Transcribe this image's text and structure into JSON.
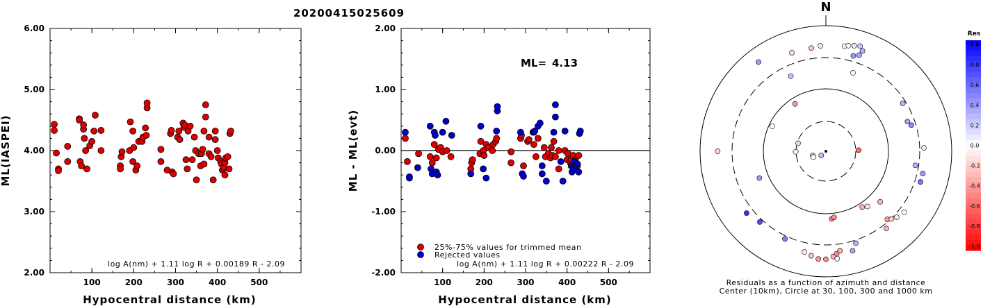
{
  "figure_title": "20200415025609",
  "chart_data": [
    {
      "type": "scatter",
      "xlabel": "Hypocentral distance (km)",
      "ylabel": "ML(IASPEI)",
      "xlim": [
        0,
        600
      ],
      "ylim": [
        2.0,
        6.0
      ],
      "xticks": [
        "100",
        "200",
        "300",
        "400",
        "500"
      ],
      "yticks": [
        "2.00",
        "3.00",
        "4.00",
        "5.00",
        "6.00"
      ],
      "formula": "log A(nm) + 1.11 log R + 0.00189 R - 2.09",
      "series": [
        {
          "color": "#dd0000",
          "points": [
            [
              10,
              4.43
            ],
            [
              10,
              4.33
            ],
            [
              15,
              3.96
            ],
            [
              20,
              3.7
            ],
            [
              20,
              3.67
            ],
            [
              42,
              4.07
            ],
            [
              42,
              3.82
            ],
            [
              70,
              4.52
            ],
            [
              70,
              4.5
            ],
            [
              72,
              3.82
            ],
            [
              75,
              3.75
            ],
            [
              80,
              4.35
            ],
            [
              80,
              4.42
            ],
            [
              82,
              4.2
            ],
            [
              85,
              4.0
            ],
            [
              88,
              3.7
            ],
            [
              95,
              4.08
            ],
            [
              100,
              4.15
            ],
            [
              105,
              4.32
            ],
            [
              108,
              4.58
            ],
            [
              122,
              4.33
            ],
            [
              122,
              4.0
            ],
            [
              168,
              3.75
            ],
            [
              168,
              3.7
            ],
            [
              170,
              3.9
            ],
            [
              172,
              3.98
            ],
            [
              190,
              4.0
            ],
            [
              192,
              4.47
            ],
            [
              198,
              4.32
            ],
            [
              198,
              3.82
            ],
            [
              200,
              4.05
            ],
            [
              205,
              3.68
            ],
            [
              208,
              3.75
            ],
            [
              212,
              4.15
            ],
            [
              220,
              4.15
            ],
            [
              222,
              4.22
            ],
            [
              228,
              4.37
            ],
            [
              230,
              4.25
            ],
            [
              232,
              4.7
            ],
            [
              232,
              4.78
            ],
            [
              265,
              4.02
            ],
            [
              265,
              3.82
            ],
            [
              280,
              3.68
            ],
            [
              288,
              4.28
            ],
            [
              290,
              4.33
            ],
            [
              292,
              3.65
            ],
            [
              295,
              3.62
            ],
            [
              305,
              4.22
            ],
            [
              308,
              4.32
            ],
            [
              310,
              4.18
            ],
            [
              318,
              4.45
            ],
            [
              320,
              4.38
            ],
            [
              322,
              4.42
            ],
            [
              325,
              3.85
            ],
            [
              328,
              3.7
            ],
            [
              330,
              4.32
            ],
            [
              335,
              4.4
            ],
            [
              340,
              3.85
            ],
            [
              345,
              4.22
            ],
            [
              348,
              4.0
            ],
            [
              350,
              3.52
            ],
            [
              355,
              3.95
            ],
            [
              360,
              3.75
            ],
            [
              362,
              3.95
            ],
            [
              365,
              4.02
            ],
            [
              368,
              4.32
            ],
            [
              368,
              3.78
            ],
            [
              372,
              4.75
            ],
            [
              372,
              4.55
            ],
            [
              380,
              4.22
            ],
            [
              380,
              3.95
            ],
            [
              385,
              3.9
            ],
            [
              390,
              3.52
            ],
            [
              395,
              4.32
            ],
            [
              395,
              4.18
            ],
            [
              400,
              4.0
            ],
            [
              402,
              3.88
            ],
            [
              408,
              3.82
            ],
            [
              410,
              3.78
            ],
            [
              412,
              3.68
            ],
            [
              415,
              3.72
            ],
            [
              418,
              3.6
            ],
            [
              418,
              3.8
            ],
            [
              420,
              3.88
            ],
            [
              425,
              3.9
            ],
            [
              428,
              3.7
            ],
            [
              430,
              4.28
            ],
            [
              432,
              4.32
            ]
          ]
        }
      ]
    },
    {
      "type": "scatter",
      "xlabel": "Hypocentral distance (km)",
      "ylabel": "ML - ML(evt)",
      "xlim": [
        0,
        600
      ],
      "ylim": [
        -2.0,
        2.0
      ],
      "xticks": [
        "100",
        "200",
        "300",
        "400",
        "500"
      ],
      "yticks": [
        "-2.00",
        "-1.00",
        "0.00",
        "1.00",
        "2.00"
      ],
      "hline": 0.0,
      "ml_label": "ML=",
      "ml_value": "4.13",
      "formula": "log A(nm) + 1.11 log R + 0.00222 R - 2.09",
      "series": [
        {
          "name": "25%-75% values for trimmed mean",
          "color": "#dd0000",
          "points": [
            [
              10,
              0.2
            ],
            [
              15,
              -0.18
            ],
            [
              42,
              -0.05
            ],
            [
              70,
              -0.1
            ],
            [
              75,
              -0.2
            ],
            [
              80,
              0.1
            ],
            [
              85,
              -0.12
            ],
            [
              90,
              0.02
            ],
            [
              95,
              0.05
            ],
            [
              100,
              -0.02
            ],
            [
              110,
              0.0
            ],
            [
              120,
              -0.1
            ],
            [
              168,
              -0.3
            ],
            [
              170,
              -0.2
            ],
            [
              172,
              -0.15
            ],
            [
              190,
              -0.05
            ],
            [
              192,
              0.15
            ],
            [
              198,
              0.0
            ],
            [
              200,
              -0.08
            ],
            [
              205,
              0.1
            ],
            [
              210,
              0.05
            ],
            [
              220,
              0.0
            ],
            [
              222,
              0.1
            ],
            [
              228,
              0.15
            ],
            [
              230,
              0.2
            ],
            [
              265,
              -0.02
            ],
            [
              265,
              -0.2
            ],
            [
              288,
              0.2
            ],
            [
              290,
              0.25
            ],
            [
              295,
              -0.25
            ],
            [
              305,
              0.15
            ],
            [
              308,
              0.18
            ],
            [
              318,
              0.3
            ],
            [
              320,
              0.1
            ],
            [
              325,
              -0.1
            ],
            [
              330,
              0.2
            ],
            [
              345,
              0.05
            ],
            [
              348,
              -0.1
            ],
            [
              355,
              -0.05
            ],
            [
              360,
              -0.12
            ],
            [
              362,
              0.05
            ],
            [
              365,
              -0.08
            ],
            [
              368,
              0.15
            ],
            [
              372,
              -0.1
            ],
            [
              380,
              0.0
            ],
            [
              380,
              -0.3
            ],
            [
              395,
              0.0
            ],
            [
              400,
              -0.15
            ],
            [
              402,
              -0.05
            ],
            [
              408,
              -0.2
            ],
            [
              410,
              -0.15
            ],
            [
              415,
              -0.08
            ],
            [
              420,
              -0.15
            ],
            [
              425,
              -0.25
            ],
            [
              428,
              -0.08
            ]
          ]
        },
        {
          "name": "Rejected values",
          "color": "#0000cc",
          "points": [
            [
              10,
              0.3
            ],
            [
              20,
              -0.43
            ],
            [
              20,
              -0.45
            ],
            [
              40,
              -0.28
            ],
            [
              70,
              0.4
            ],
            [
              72,
              -0.3
            ],
            [
              75,
              -0.38
            ],
            [
              80,
              0.3
            ],
            [
              82,
              0.25
            ],
            [
              85,
              -0.35
            ],
            [
              88,
              -0.4
            ],
            [
              100,
              0.3
            ],
            [
              108,
              0.48
            ],
            [
              122,
              0.25
            ],
            [
              168,
              -0.38
            ],
            [
              192,
              0.4
            ],
            [
              198,
              -0.3
            ],
            [
              205,
              -0.45
            ],
            [
              230,
              0.32
            ],
            [
              232,
              0.65
            ],
            [
              232,
              0.72
            ],
            [
              288,
              0.3
            ],
            [
              292,
              -0.38
            ],
            [
              295,
              -0.42
            ],
            [
              320,
              0.3
            ],
            [
              322,
              0.32
            ],
            [
              330,
              0.4
            ],
            [
              335,
              0.45
            ],
            [
              340,
              -0.25
            ],
            [
              340,
              -0.38
            ],
            [
              350,
              -0.5
            ],
            [
              368,
              0.3
            ],
            [
              372,
              0.75
            ],
            [
              372,
              0.55
            ],
            [
              385,
              -0.18
            ],
            [
              390,
              -0.5
            ],
            [
              395,
              0.32
            ],
            [
              410,
              -0.25
            ],
            [
              412,
              -0.35
            ],
            [
              415,
              -0.28
            ],
            [
              418,
              -0.3
            ],
            [
              418,
              -0.18
            ],
            [
              420,
              -0.25
            ],
            [
              425,
              -0.22
            ],
            [
              428,
              -0.35
            ],
            [
              430,
              0.28
            ],
            [
              432,
              0.32
            ]
          ]
        }
      ]
    },
    {
      "type": "polar_scatter",
      "north_label": "N",
      "caption_line1": "Residuals as a function of azimuth and distance",
      "caption_line2": "Center (10km), Circle at 30, 100, 300 and 1000 km",
      "colorbar_title": "Res",
      "colorbar_ticks": [
        "1.0",
        "0.8",
        "0.6",
        "0.4",
        "0.2",
        "0.0",
        "-0.2",
        "-0.4",
        "-0.6",
        "-0.8",
        "-1.0"
      ],
      "points": [
        [
          10,
          0.85,
          -0.05
        ],
        [
          12,
          0.86,
          0.0
        ],
        [
          15,
          0.87,
          0.1
        ],
        [
          18,
          0.88,
          0.2
        ],
        [
          20,
          0.85,
          0.3
        ],
        [
          16,
          0.79,
          0.4
        ],
        [
          19,
          0.81,
          0.35
        ],
        [
          357,
          0.84,
          -0.1
        ],
        [
          352,
          0.83,
          -0.25
        ],
        [
          341,
          0.83,
          -0.15
        ],
        [
          323,
          0.89,
          0.4
        ],
        [
          335,
          0.66,
          0.25
        ],
        [
          19,
          0.66,
          0.0
        ],
        [
          327,
          0.45,
          -0.4
        ],
        [
          58,
          0.72,
          0.3
        ],
        [
          70,
          0.69,
          0.35
        ],
        [
          73,
          0.71,
          0.45
        ],
        [
          286,
          0.23,
          0.15
        ],
        [
          295,
          0.47,
          0.0
        ],
        [
          88,
          0.78,
          -0.1
        ],
        [
          99,
          0.72,
          0.3
        ],
        [
          103,
          0.79,
          0.4
        ],
        [
          108,
          0.79,
          0.55
        ],
        [
          133,
          0.59,
          -0.3
        ],
        [
          143,
          0.55,
          -0.1
        ],
        [
          147,
          0.53,
          -0.3
        ],
        [
          133,
          0.77,
          -0.1
        ],
        [
          128,
          0.79,
          0.0
        ],
        [
          138,
          0.73,
          -0.4
        ],
        [
          142,
          0.78,
          -0.3
        ],
        [
          136,
          0.75,
          -0.2
        ],
        [
          270,
          0.86,
          -0.2
        ],
        [
          248,
          0.57,
          0.4
        ],
        [
          232,
          0.8,
          0.8
        ],
        [
          223,
          0.77,
          0.7
        ],
        [
          205,
          0.77,
          0.5
        ],
        [
          188,
          0.84,
          -0.25
        ],
        [
          192,
          0.82,
          -0.1
        ],
        [
          184,
          0.86,
          -0.4
        ],
        [
          180,
          0.86,
          -0.45
        ],
        [
          176,
          0.84,
          -0.3
        ],
        [
          174,
          0.86,
          0.0
        ],
        [
          165,
          0.82,
          0.35
        ],
        [
          162,
          0.77,
          0.3
        ],
        [
          174,
          0.82,
          -0.45
        ],
        [
          172,
          0.8,
          -0.35
        ],
        [
          175,
          0.54,
          -0.5
        ],
        [
          173,
          0.53,
          -0.45
        ],
        [
          252,
          0.11,
          -0.3
        ],
        [
          245,
          0.11,
          0.0
        ],
        [
          269,
          0.24,
          -0.05
        ],
        [
          228,
          0.05,
          0.25
        ],
        [
          88,
          0.26,
          -0.6
        ]
      ]
    }
  ]
}
